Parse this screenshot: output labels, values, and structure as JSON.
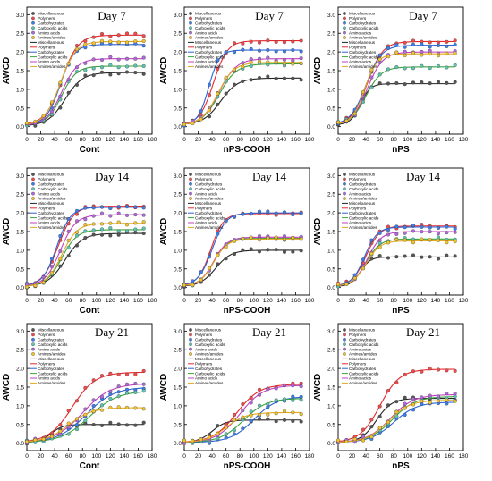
{
  "figure": {
    "ylabel": "AWCD",
    "legend_labels": [
      "Miscellaneous",
      "Polymers",
      "Carbohydrates",
      "Carboxylic acids",
      "Amino acids",
      "Amines/amides"
    ],
    "series_colors": {
      "Miscellaneous": "#222222",
      "Polymers": "#e8262a",
      "Carbohydrates": "#2b63d9",
      "Carboxylic acids": "#3aa43a",
      "Amino acids": "#c23fc2",
      "Amines/amides": "#e2a81f"
    },
    "marker_fill_colors": {
      "Miscellaneous": "#555555",
      "Polymers": "#ef4b4b",
      "Carbohydrates": "#3d7ee8",
      "Carboxylic acids": "#5ec2b0",
      "Amino acids": "#b06ad8",
      "Amines/amides": "#f2c230"
    },
    "xlim": [
      0,
      180
    ],
    "xticks": [
      0,
      20,
      40,
      60,
      80,
      100,
      120,
      140,
      160,
      180
    ],
    "ylim": [
      -0.2,
      3.2
    ],
    "yticks": [
      0.0,
      0.5,
      1.0,
      1.5,
      2.0,
      2.5,
      3.0
    ],
    "sample_times": [
      0,
      12,
      24,
      36,
      48,
      60,
      72,
      84,
      96,
      108,
      120,
      132,
      144,
      156,
      168
    ]
  },
  "chart_data": [
    {
      "type": "scatter",
      "title": "Day 7",
      "xlabel": "Cont",
      "ylabel": "AWCD",
      "legend_position": "top-left",
      "xlim": [
        0,
        180
      ],
      "ylim": [
        -0.2,
        3.2
      ],
      "grid": false,
      "series": [
        {
          "name": "Miscellaneous",
          "plateau": 1.45,
          "midpoint": 55,
          "rate": 0.08,
          "offset": 0.02
        },
        {
          "name": "Polymers",
          "plateau": 2.45,
          "midpoint": 50,
          "rate": 0.085,
          "offset": 0.05
        },
        {
          "name": "Carbohydrates",
          "plateau": 2.2,
          "midpoint": 48,
          "rate": 0.1,
          "offset": 0.05
        },
        {
          "name": "Carboxylic acids",
          "plateau": 1.62,
          "midpoint": 50,
          "rate": 0.095,
          "offset": 0.04
        },
        {
          "name": "Amino acids",
          "plateau": 1.82,
          "midpoint": 50,
          "rate": 0.09,
          "offset": 0.03
        },
        {
          "name": "Amines/amides",
          "plateau": 2.28,
          "midpoint": 48,
          "rate": 0.09,
          "offset": 0.04
        }
      ]
    },
    {
      "type": "scatter",
      "title": "Day 7",
      "xlabel": "nPS-COOH",
      "ylabel": "AWCD",
      "legend_position": "top-left",
      "xlim": [
        0,
        180
      ],
      "ylim": [
        -0.2,
        3.2
      ],
      "grid": false,
      "series": [
        {
          "name": "Miscellaneous",
          "plateau": 1.3,
          "midpoint": 52,
          "rate": 0.08,
          "offset": 0.05
        },
        {
          "name": "Polymers",
          "plateau": 2.3,
          "midpoint": 42,
          "rate": 0.1,
          "offset": 0.05
        },
        {
          "name": "Carbohydrates",
          "plateau": 2.05,
          "midpoint": 35,
          "rate": 0.13,
          "offset": 0.05
        },
        {
          "name": "Carboxylic acids",
          "plateau": 1.68,
          "midpoint": 50,
          "rate": 0.08,
          "offset": 0.04
        },
        {
          "name": "Amino acids",
          "plateau": 1.82,
          "midpoint": 50,
          "rate": 0.08,
          "offset": 0.04
        },
        {
          "name": "Amines/amides",
          "plateau": 1.72,
          "midpoint": 48,
          "rate": 0.085,
          "offset": 0.04
        }
      ]
    },
    {
      "type": "scatter",
      "title": "Day 7",
      "xlabel": "nPS",
      "ylabel": "AWCD",
      "legend_position": "top-left",
      "xlim": [
        0,
        180
      ],
      "ylim": [
        -0.2,
        3.2
      ],
      "grid": false,
      "series": [
        {
          "name": "Miscellaneous",
          "plateau": 1.15,
          "midpoint": 32,
          "rate": 0.14,
          "offset": 0.05
        },
        {
          "name": "Polymers",
          "plateau": 2.28,
          "midpoint": 42,
          "rate": 0.09,
          "offset": 0.05
        },
        {
          "name": "Carbohydrates",
          "plateau": 2.18,
          "midpoint": 40,
          "rate": 0.09,
          "offset": 0.05
        },
        {
          "name": "Carboxylic acids",
          "plateau": 1.6,
          "midpoint": 40,
          "rate": 0.09,
          "offset": 0.04
        },
        {
          "name": "Amino acids",
          "plateau": 2.0,
          "midpoint": 42,
          "rate": 0.09,
          "offset": 0.04
        },
        {
          "name": "Amines/amides",
          "plateau": 1.95,
          "midpoint": 38,
          "rate": 0.11,
          "offset": 0.05
        }
      ]
    },
    {
      "type": "scatter",
      "title": "Day 14",
      "xlabel": "Cont",
      "ylabel": "AWCD",
      "legend_position": "top-left",
      "xlim": [
        0,
        180
      ],
      "ylim": [
        -0.2,
        3.2
      ],
      "grid": false,
      "series": [
        {
          "name": "Miscellaneous",
          "plateau": 1.45,
          "midpoint": 55,
          "rate": 0.08,
          "offset": 0.03
        },
        {
          "name": "Polymers",
          "plateau": 2.18,
          "midpoint": 45,
          "rate": 0.09,
          "offset": 0.04
        },
        {
          "name": "Carbohydrates",
          "plateau": 2.15,
          "midpoint": 43,
          "rate": 0.1,
          "offset": 0.04
        },
        {
          "name": "Carboxylic acids",
          "plateau": 1.55,
          "midpoint": 50,
          "rate": 0.09,
          "offset": 0.03
        },
        {
          "name": "Amino acids",
          "plateau": 1.95,
          "midpoint": 48,
          "rate": 0.09,
          "offset": 0.03
        },
        {
          "name": "Amines/amides",
          "plateau": 1.72,
          "midpoint": 50,
          "rate": 0.09,
          "offset": 0.03
        }
      ]
    },
    {
      "type": "scatter",
      "title": "Day 14",
      "xlabel": "nPS-COOH",
      "ylabel": "AWCD",
      "legend_position": "top-left",
      "xlim": [
        0,
        180
      ],
      "ylim": [
        -0.2,
        3.2
      ],
      "grid": false,
      "series": [
        {
          "name": "Miscellaneous",
          "plateau": 1.0,
          "midpoint": 45,
          "rate": 0.09,
          "offset": 0.03
        },
        {
          "name": "Polymers",
          "plateau": 1.98,
          "midpoint": 38,
          "rate": 0.11,
          "offset": 0.05
        },
        {
          "name": "Carbohydrates",
          "plateau": 2.0,
          "midpoint": 40,
          "rate": 0.1,
          "offset": 0.05
        },
        {
          "name": "Carboxylic acids",
          "plateau": 1.32,
          "midpoint": 42,
          "rate": 0.1,
          "offset": 0.04
        },
        {
          "name": "Amino acids",
          "plateau": 1.35,
          "midpoint": 42,
          "rate": 0.1,
          "offset": 0.04
        },
        {
          "name": "Amines/amides",
          "plateau": 1.3,
          "midpoint": 42,
          "rate": 0.1,
          "offset": 0.04
        }
      ]
    },
    {
      "type": "scatter",
      "title": "Day 14",
      "xlabel": "nPS",
      "ylabel": "AWCD",
      "legend_position": "top-left",
      "xlim": [
        0,
        180
      ],
      "ylim": [
        -0.2,
        3.2
      ],
      "grid": false,
      "series": [
        {
          "name": "Miscellaneous",
          "plateau": 0.82,
          "midpoint": 32,
          "rate": 0.14,
          "offset": 0.03
        },
        {
          "name": "Polymers",
          "plateau": 1.65,
          "midpoint": 40,
          "rate": 0.1,
          "offset": 0.04
        },
        {
          "name": "Carbohydrates",
          "plateau": 1.62,
          "midpoint": 38,
          "rate": 0.11,
          "offset": 0.04
        },
        {
          "name": "Carboxylic acids",
          "plateau": 1.3,
          "midpoint": 40,
          "rate": 0.1,
          "offset": 0.03
        },
        {
          "name": "Amino acids",
          "plateau": 1.5,
          "midpoint": 42,
          "rate": 0.1,
          "offset": 0.03
        },
        {
          "name": "Amines/amides",
          "plateau": 1.25,
          "midpoint": 40,
          "rate": 0.1,
          "offset": 0.03
        }
      ]
    },
    {
      "type": "scatter",
      "title": "Day 21",
      "xlabel": "Cont",
      "ylabel": "AWCD",
      "legend_position": "top-left",
      "xlim": [
        0,
        180
      ],
      "ylim": [
        -0.2,
        3.2
      ],
      "grid": false,
      "series": [
        {
          "name": "Miscellaneous",
          "plateau": 0.5,
          "midpoint": 35,
          "rate": 0.12,
          "offset": 0.02
        },
        {
          "name": "Polymers",
          "plateau": 1.9,
          "midpoint": 65,
          "rate": 0.06,
          "offset": 0.02
        },
        {
          "name": "Carbohydrates",
          "plateau": 1.5,
          "midpoint": 85,
          "rate": 0.05,
          "offset": 0.02
        },
        {
          "name": "Carboxylic acids",
          "plateau": 1.4,
          "midpoint": 90,
          "rate": 0.05,
          "offset": 0.02
        },
        {
          "name": "Amino acids",
          "plateau": 1.6,
          "midpoint": 80,
          "rate": 0.05,
          "offset": 0.02
        },
        {
          "name": "Amines/amides",
          "plateau": 0.95,
          "midpoint": 60,
          "rate": 0.06,
          "offset": 0.02
        }
      ]
    },
    {
      "type": "scatter",
      "title": "Day 21",
      "xlabel": "nPS-COOH",
      "ylabel": "AWCD",
      "legend_position": "top-left",
      "xlim": [
        0,
        180
      ],
      "ylim": [
        -0.2,
        3.2
      ],
      "grid": false,
      "series": [
        {
          "name": "Miscellaneous",
          "plateau": 0.62,
          "midpoint": 40,
          "rate": 0.1,
          "offset": 0.02
        },
        {
          "name": "Polymers",
          "plateau": 1.58,
          "midpoint": 75,
          "rate": 0.06,
          "offset": 0.02
        },
        {
          "name": "Carbohydrates",
          "plateau": 1.25,
          "midpoint": 100,
          "rate": 0.06,
          "offset": 0.02
        },
        {
          "name": "Carboxylic acids",
          "plateau": 1.2,
          "midpoint": 85,
          "rate": 0.06,
          "offset": 0.02
        },
        {
          "name": "Amino acids",
          "plateau": 1.55,
          "midpoint": 80,
          "rate": 0.06,
          "offset": 0.02
        },
        {
          "name": "Amines/amides",
          "plateau": 0.82,
          "midpoint": 60,
          "rate": 0.07,
          "offset": 0.02
        }
      ]
    },
    {
      "type": "scatter",
      "title": "Day 21",
      "xlabel": "nPS",
      "ylabel": "AWCD",
      "legend_position": "top-left",
      "xlim": [
        0,
        180
      ],
      "ylim": [
        -0.2,
        3.2
      ],
      "grid": false,
      "series": [
        {
          "name": "Miscellaneous",
          "plateau": 1.2,
          "midpoint": 55,
          "rate": 0.09,
          "offset": 0.02
        },
        {
          "name": "Polymers",
          "plateau": 1.98,
          "midpoint": 60,
          "rate": 0.07,
          "offset": 0.02
        },
        {
          "name": "Carbohydrates",
          "plateau": 1.1,
          "midpoint": 80,
          "rate": 0.06,
          "offset": 0.02
        },
        {
          "name": "Carboxylic acids",
          "plateau": 1.25,
          "midpoint": 78,
          "rate": 0.06,
          "offset": 0.02
        },
        {
          "name": "Amino acids",
          "plateau": 1.3,
          "midpoint": 75,
          "rate": 0.06,
          "offset": 0.02
        },
        {
          "name": "Amines/amides",
          "plateau": 1.15,
          "midpoint": 72,
          "rate": 0.065,
          "offset": 0.02
        }
      ]
    }
  ]
}
